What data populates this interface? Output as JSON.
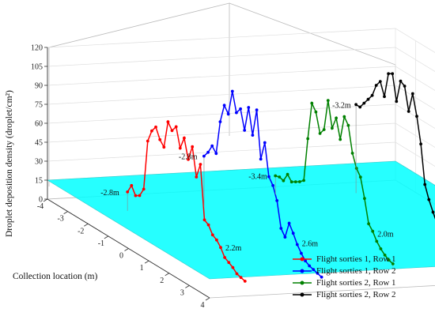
{
  "chart_data": {
    "type": "line",
    "view": "3d",
    "ylabel": "Droplet deposition density (droplet/cm²)",
    "xlabel": "Collection location (m)",
    "zlim": [
      0,
      120
    ],
    "z_ticks": [
      "0",
      "15",
      "30",
      "45",
      "60",
      "75",
      "90",
      "105",
      "120"
    ],
    "x_ticks": [
      "-4",
      "-3",
      "-2",
      "-1",
      "0",
      "1",
      "2",
      "3",
      "4"
    ],
    "threshold_plane": {
      "value": 15,
      "color": "#00ffff"
    },
    "legend": {
      "placement": "bottom-right"
    },
    "grid": true,
    "series": [
      {
        "name": "Flight sorties 1,  Row 1",
        "color": "#ff0000",
        "x": [
          -2.8,
          -2.6,
          -2.4,
          -2.2,
          -2.0,
          -1.8,
          -1.6,
          -1.4,
          -1.2,
          -1.0,
          -0.8,
          -0.6,
          -0.4,
          -0.2,
          0.0,
          0.2,
          0.4,
          0.6,
          0.8,
          1.0,
          1.2,
          1.4,
          1.6,
          1.8,
          2.0,
          2.2,
          2.4,
          2.6,
          2.8,
          3.0
        ],
        "values": [
          15,
          22,
          16,
          18,
          25,
          65,
          75,
          80,
          72,
          68,
          90,
          85,
          90,
          75,
          85,
          70,
          82,
          60,
          72,
          30,
          28,
          22,
          20,
          16,
          10,
          8,
          6,
          3,
          2,
          1
        ]
      },
      {
        "name": "Flight sorties 1,  Row 2",
        "color": "#0000ff",
        "x": [
          -2.8,
          -2.6,
          -2.4,
          -2.2,
          -2.0,
          -1.8,
          -1.6,
          -1.4,
          -1.2,
          -1.0,
          -0.8,
          -0.6,
          -0.4,
          -0.2,
          0.0,
          0.2,
          0.4,
          0.6,
          0.8,
          1.0,
          1.2,
          1.4,
          1.6,
          1.8,
          2.0,
          2.2,
          2.4,
          2.6,
          2.8,
          3.0
        ],
        "values": [
          40,
          45,
          52,
          48,
          75,
          90,
          85,
          105,
          90,
          95,
          80,
          100,
          80,
          102,
          65,
          80,
          55,
          50,
          40,
          20,
          15,
          28,
          22,
          15,
          10,
          6,
          4,
          3,
          2,
          1
        ]
      },
      {
        "name": "Flight sorties 2,  Row 1",
        "color": "#008000",
        "x": [
          -3.4,
          -3.2,
          -3.0,
          -2.8,
          -2.6,
          -2.4,
          -2.2,
          -2.0,
          -1.8,
          -1.6,
          -1.4,
          -1.2,
          -1.0,
          -0.8,
          -0.6,
          -0.4,
          -0.2,
          0.0,
          0.2,
          0.4,
          0.6,
          0.8,
          1.0,
          1.2,
          1.4,
          1.6,
          1.8,
          2.0,
          2.2,
          2.4
        ],
        "values": [
          15,
          16,
          15,
          22,
          18,
          20,
          22,
          25,
          60,
          90,
          85,
          70,
          75,
          100,
          80,
          90,
          75,
          95,
          90,
          70,
          60,
          55,
          40,
          22,
          18,
          12,
          8,
          5,
          3,
          2
        ]
      },
      {
        "name": "Flight sorties 2,  Row 2",
        "color": "#000000",
        "x": [
          -3.2,
          -3.0,
          -2.8,
          -2.6,
          -2.4,
          -2.2,
          -2.0,
          -1.8,
          -1.6,
          -1.4,
          -1.2,
          -1.0,
          -0.8,
          -0.6,
          -0.4,
          -0.2,
          0.0,
          0.2,
          0.4,
          0.6,
          0.8,
          1.0,
          1.2,
          1.4,
          1.6,
          1.8,
          2.0,
          2.2,
          2.4,
          2.6
        ],
        "values": [
          70,
          70,
          75,
          80,
          85,
          95,
          100,
          90,
          110,
          112,
          92,
          110,
          108,
          90,
          106,
          90,
          70,
          40,
          30,
          22,
          15,
          10,
          12,
          8,
          5,
          4,
          3,
          2,
          1,
          1
        ]
      }
    ],
    "annotations": [
      "-2.8m",
      "-2.8m",
      "-3.4m",
      "-3.2m",
      "2.2m",
      "2.6m",
      "2.0m",
      "2.0m"
    ]
  }
}
